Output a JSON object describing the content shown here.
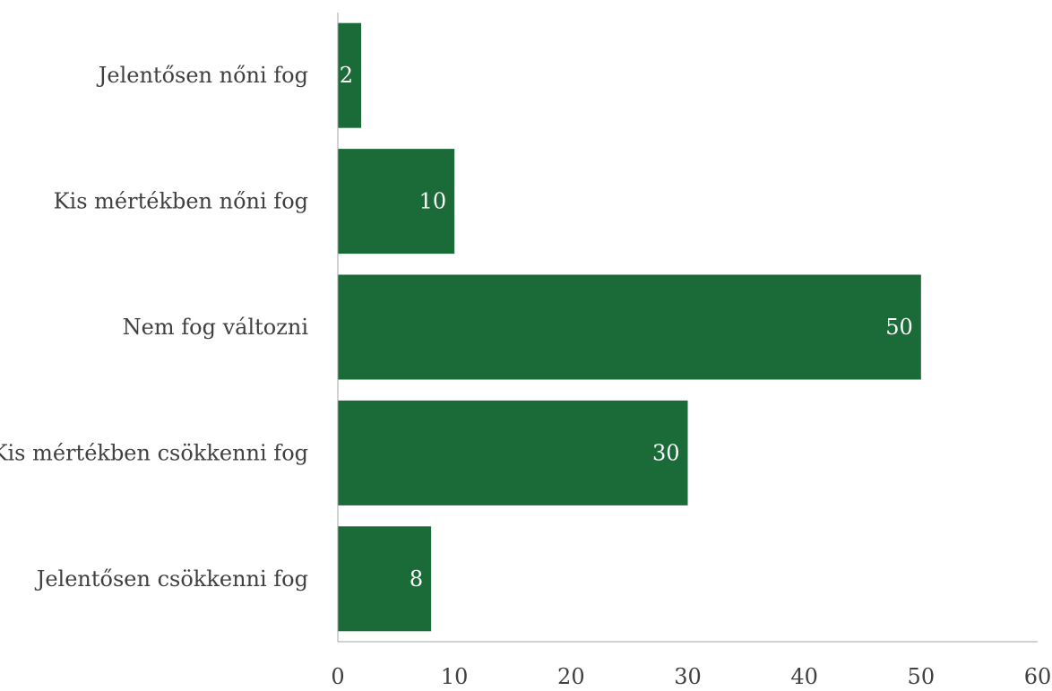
{
  "chart_data": {
    "type": "bar",
    "orientation": "horizontal",
    "title": "",
    "xlabel": "",
    "ylabel": "",
    "categories": [
      "Jelentősen nőni fog",
      "Kis mértékben nőni fog",
      "Nem fog változni",
      "Kis mértékben csökkenni fog",
      "Jelentősen csökkenni fog"
    ],
    "values": [
      2,
      10,
      50,
      30,
      8
    ],
    "data_labels": [
      "2",
      "10",
      "50",
      "30",
      "8"
    ],
    "xlim": [
      0,
      60
    ],
    "x_ticks": [
      0,
      10,
      20,
      30,
      40,
      50,
      60
    ],
    "x_tick_labels": [
      "0",
      "10",
      "20",
      "30",
      "40",
      "50",
      "60"
    ],
    "grid": false,
    "legend": "none",
    "colors": {
      "bar": "#1a6b37",
      "axis": "#a6a6a6",
      "text": "#404040",
      "data_label": "#ffffff"
    }
  }
}
